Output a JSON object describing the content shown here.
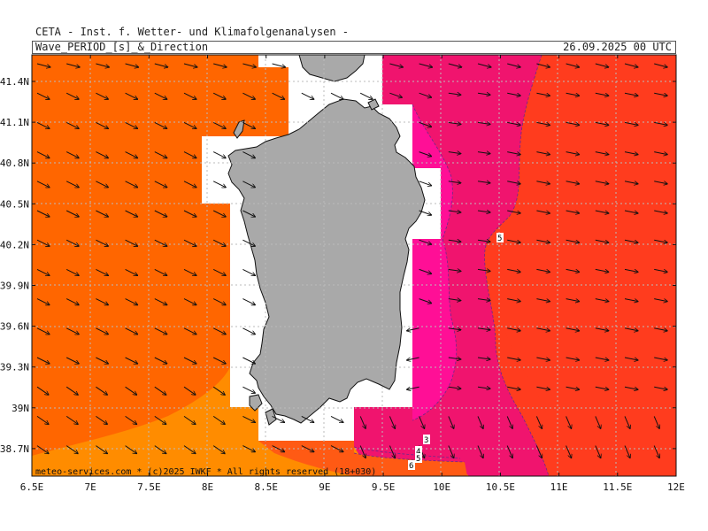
{
  "header": {
    "organization": "CETA - Inst. f. Wetter- und Klimafolgenanalysen -",
    "parameter": "Wave_PERIOD_[s]_&_Direction",
    "valid_time": "26.09.2025 00 UTC"
  },
  "credit": "meteo-services.com * (c)2025 IWKF * All rights reserved (18+030)",
  "axes": {
    "x_ticks": [
      "6.5E",
      "7E",
      "7.5E",
      "8E",
      "8.5E",
      "9E",
      "9.5E",
      "10E",
      "10.5E",
      "11E",
      "11.5E",
      "12E"
    ],
    "y_ticks": [
      "41.4N",
      "41.1N",
      "40.8N",
      "40.5N",
      "40.2N",
      "39.9N",
      "39.6N",
      "39.3N",
      "39N",
      "38.7N"
    ]
  },
  "contour_labels": [
    "5",
    "3",
    "4",
    "5",
    "6"
  ],
  "colors": {
    "period_orange": "#ff6600",
    "period_light_orange": "#ff8c00",
    "period_red_orange": "#ff3c1e",
    "period_magenta": "#f0146e",
    "period_pink": "#ff0f96",
    "land": "#a9a9a9",
    "grid": "#bbbbbb"
  },
  "map": {
    "region": "Sardinia",
    "lon_range": [
      6.5,
      12
    ],
    "lat_range": [
      38.55,
      41.55
    ],
    "grid": true
  }
}
